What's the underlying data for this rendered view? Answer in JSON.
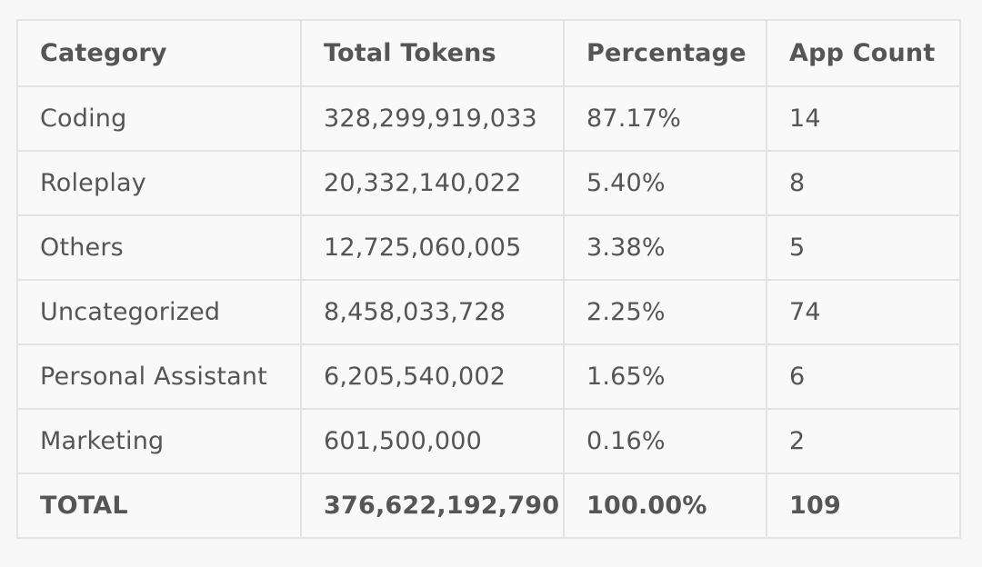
{
  "table": {
    "headers": [
      "Category",
      "Total Tokens",
      "Percentage",
      "App Count"
    ],
    "rows": [
      [
        "Coding",
        "328,299,919,033",
        "87.17%",
        "14"
      ],
      [
        "Roleplay",
        "20,332,140,022",
        "5.40%",
        "8"
      ],
      [
        "Others",
        "12,725,060,005",
        "3.38%",
        "5"
      ],
      [
        "Uncategorized",
        "8,458,033,728",
        "2.25%",
        "74"
      ],
      [
        "Personal Assistant",
        "6,205,540,002",
        "1.65%",
        "6"
      ],
      [
        "Marketing",
        "601,500,000",
        "0.16%",
        "2"
      ]
    ],
    "total": [
      "TOTAL",
      "376,622,192,790",
      "100.00%",
      "109"
    ]
  },
  "colors": {
    "background": "#f7f7f7",
    "table_background": "#f9f9f9",
    "border": "#e3e3e3",
    "text": "#555555"
  }
}
